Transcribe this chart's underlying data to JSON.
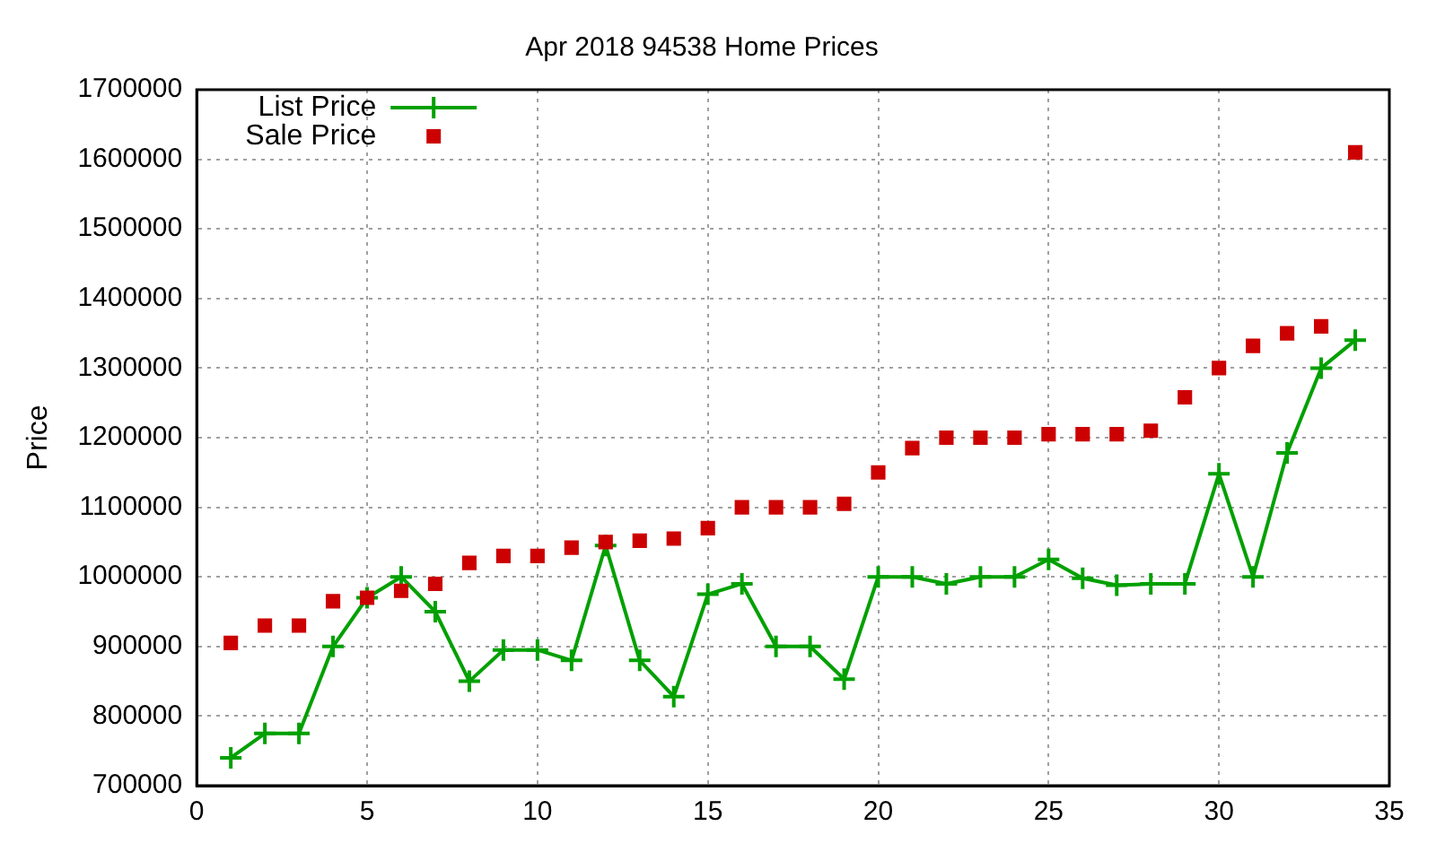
{
  "chart_data": {
    "type": "line",
    "title": "Apr 2018 94538 Home Prices",
    "ylabel": "Price",
    "x": [
      1,
      2,
      3,
      4,
      5,
      6,
      7,
      8,
      9,
      10,
      11,
      12,
      13,
      14,
      15,
      16,
      17,
      18,
      19,
      20,
      21,
      22,
      23,
      24,
      25,
      26,
      27,
      28,
      29,
      30,
      31,
      32,
      33,
      34
    ],
    "series": [
      {
        "name": "List Price",
        "type": "line",
        "color": "#00a000",
        "marker": "cross",
        "values": [
          740000,
          775000,
          775000,
          900000,
          970000,
          1000000,
          950000,
          850000,
          895000,
          895000,
          880000,
          1045000,
          880000,
          828000,
          975000,
          990000,
          900000,
          900000,
          853000,
          1000000,
          1000000,
          990000,
          1000000,
          1000000,
          1025000,
          998000,
          988000,
          990000,
          990000,
          1148000,
          1000000,
          1178000,
          1300000,
          1340000
        ]
      },
      {
        "name": "Sale Price",
        "type": "scatter",
        "color": "#cc0000",
        "marker": "square",
        "values": [
          905000,
          930000,
          930000,
          965000,
          970000,
          980000,
          990000,
          1020000,
          1030000,
          1030000,
          1042000,
          1050000,
          1052000,
          1055000,
          1070000,
          1100000,
          1100000,
          1100000,
          1105000,
          1150000,
          1185000,
          1200000,
          1200000,
          1200000,
          1205000,
          1205000,
          1205000,
          1210000,
          1258000,
          1300000,
          1332000,
          1350000,
          1360000,
          1610000
        ]
      }
    ],
    "xlim": [
      0,
      35
    ],
    "xticks": [
      0,
      5,
      10,
      15,
      20,
      25,
      30,
      35
    ],
    "ylim": [
      700000,
      1700000
    ],
    "yticks": [
      700000,
      800000,
      900000,
      1000000,
      1100000,
      1200000,
      1300000,
      1400000,
      1500000,
      1600000,
      1700000
    ],
    "grid": true,
    "legend": "top left"
  }
}
